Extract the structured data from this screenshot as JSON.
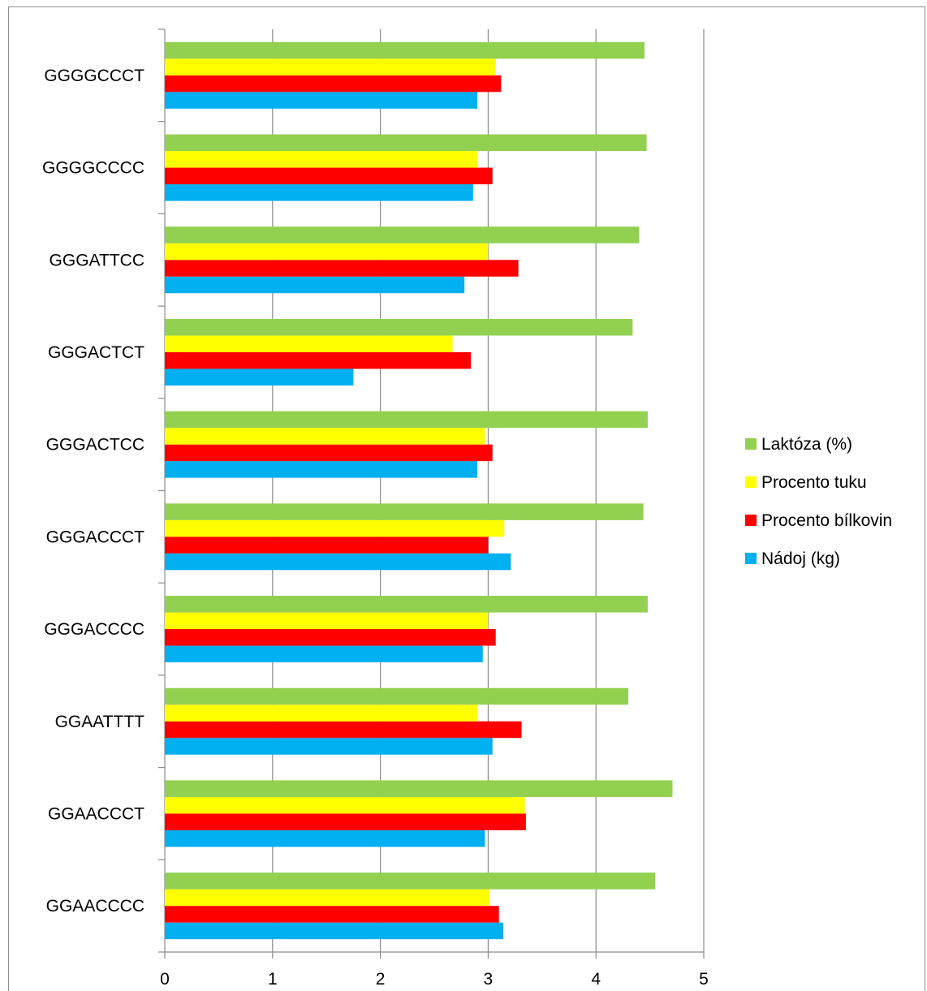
{
  "chart_data": {
    "type": "bar",
    "orientation": "horizontal",
    "categories": [
      "GGAACCCC",
      "GGAACCCT",
      "GGAATTTT",
      "GGGACCCC",
      "GGGACCCT",
      "GGGACTCC",
      "GGGACTCT",
      "GGGATTCC",
      "GGGGCCCC",
      "GGGGCCCT"
    ],
    "series": [
      {
        "name": "Nádoj (kg)",
        "color": "#00b0f0",
        "values": [
          3.14,
          2.97,
          3.04,
          2.95,
          3.21,
          2.9,
          1.75,
          2.78,
          2.86,
          2.9
        ]
      },
      {
        "name": "Procento bílkovin",
        "color": "#ff0000",
        "values": [
          3.1,
          3.35,
          3.31,
          3.07,
          3.0,
          3.04,
          2.84,
          3.28,
          3.04,
          3.12
        ]
      },
      {
        "name": "Procento tuku",
        "color": "#ffff00",
        "values": [
          3.01,
          3.34,
          2.9,
          3.0,
          3.15,
          2.97,
          2.67,
          3.0,
          2.9,
          3.07
        ]
      },
      {
        "name": "Laktóza (%)",
        "color": "#92d050",
        "values": [
          4.55,
          4.71,
          4.3,
          4.48,
          4.44,
          4.48,
          4.34,
          4.4,
          4.47,
          4.45
        ]
      }
    ],
    "xlim": [
      0,
      5
    ],
    "xticks": [
      "0",
      "1",
      "2",
      "3",
      "4",
      "5"
    ],
    "grid": true,
    "legend_position": "right",
    "title": "",
    "xlabel": "",
    "ylabel": ""
  }
}
